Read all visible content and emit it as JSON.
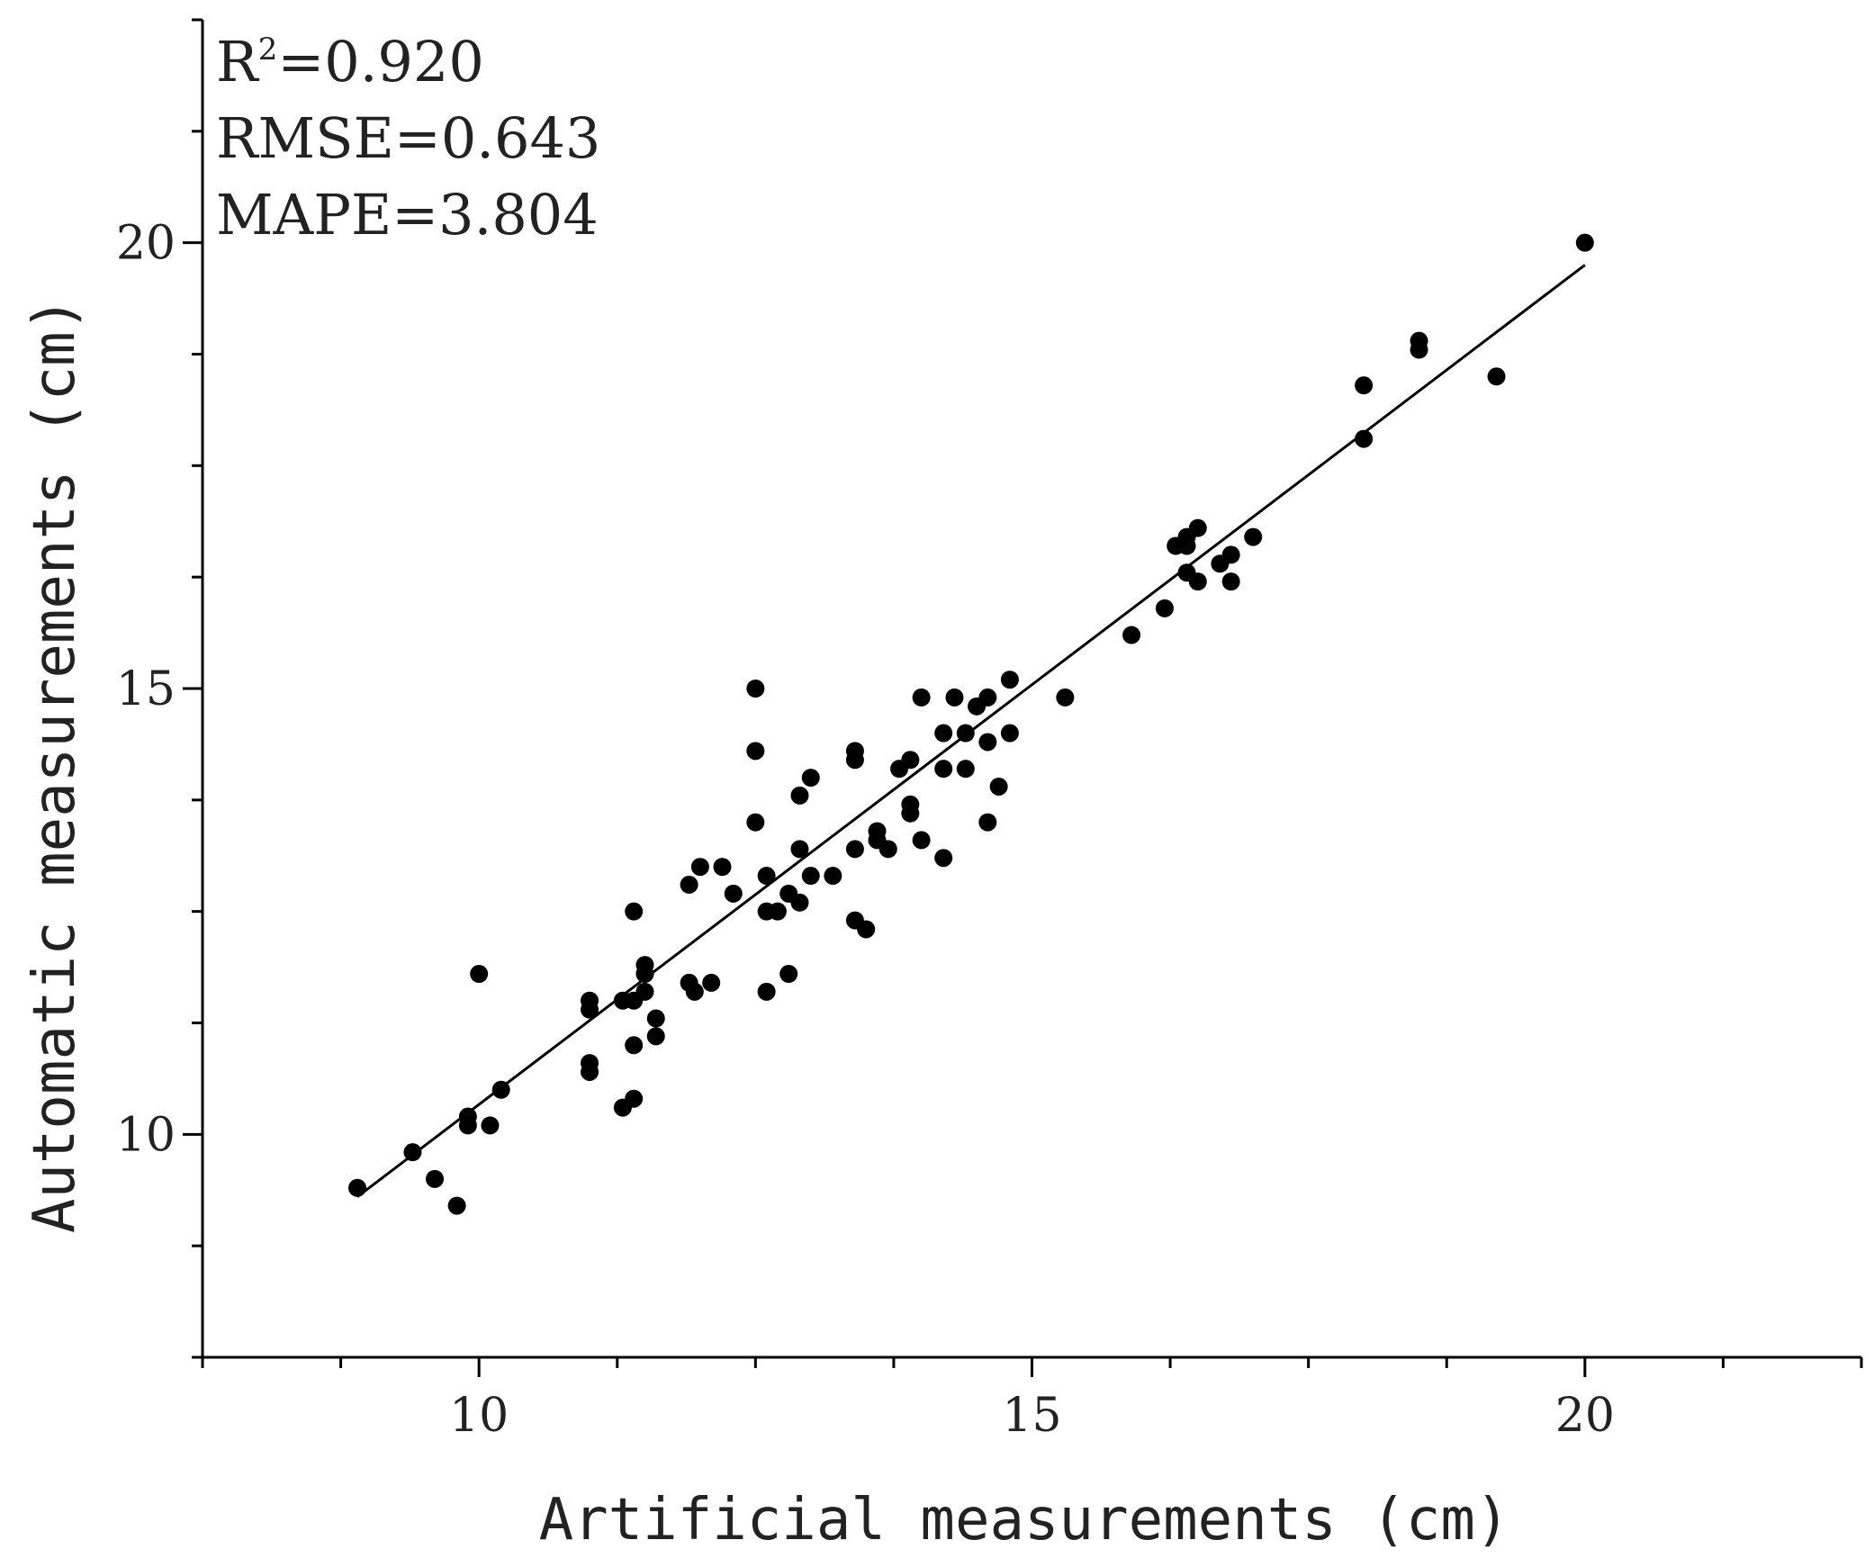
{
  "chart_data": {
    "type": "scatter",
    "title": "",
    "xlabel": "Artificial measurements (cm)",
    "ylabel": "Automatic measurements (cm)",
    "xlim": [
      7.5,
      22.5
    ],
    "ylim": [
      7.5,
      22.5
    ],
    "x_ticks": [
      10,
      15,
      20
    ],
    "y_ticks": [
      10,
      15,
      20
    ],
    "x_ticks_minor": [
      7.5,
      8.75,
      11.25,
      12.5,
      13.75,
      16.25,
      17.5,
      18.75,
      21.25,
      22.5
    ],
    "y_ticks_minor": [
      7.5,
      8.75,
      11.25,
      12.5,
      13.75,
      16.25,
      17.5,
      18.75,
      21.25,
      22.5
    ],
    "grid": false,
    "legend": "none",
    "annotations": [
      {
        "label": "R",
        "sup": "2",
        "value": "=0.920"
      },
      {
        "label": "RMSE",
        "value": "=0.643"
      },
      {
        "label": "MAPE",
        "value": "=3.804"
      }
    ],
    "fit_line": {
      "x": [
        8.9,
        20.0
      ],
      "y": [
        9.3,
        19.75
      ]
    },
    "series": [
      {
        "points": [
          [
            8.9,
            9.4
          ],
          [
            9.4,
            9.8
          ],
          [
            9.6,
            9.5
          ],
          [
            9.8,
            9.2
          ],
          [
            9.9,
            10.1
          ],
          [
            9.9,
            10.2
          ],
          [
            10.0,
            11.8
          ],
          [
            10.1,
            10.1
          ],
          [
            10.2,
            10.5
          ],
          [
            11.0,
            11.4
          ],
          [
            11.0,
            11.5
          ],
          [
            11.0,
            10.7
          ],
          [
            11.0,
            10.8
          ],
          [
            11.3,
            11.5
          ],
          [
            11.3,
            10.3
          ],
          [
            11.4,
            10.4
          ],
          [
            11.4,
            11.0
          ],
          [
            11.4,
            11.5
          ],
          [
            11.4,
            12.5
          ],
          [
            11.5,
            11.9
          ],
          [
            11.5,
            11.8
          ],
          [
            11.5,
            11.6
          ],
          [
            11.6,
            11.3
          ],
          [
            11.6,
            11.1
          ],
          [
            11.9,
            11.7
          ],
          [
            11.9,
            12.8
          ],
          [
            11.95,
            11.6
          ],
          [
            12.0,
            13.0
          ],
          [
            12.1,
            11.7
          ],
          [
            12.2,
            13.0
          ],
          [
            12.3,
            12.7
          ],
          [
            12.5,
            15.0
          ],
          [
            12.5,
            14.3
          ],
          [
            12.5,
            13.5
          ],
          [
            12.6,
            12.9
          ],
          [
            12.6,
            12.5
          ],
          [
            12.6,
            11.6
          ],
          [
            12.7,
            12.5
          ],
          [
            12.8,
            12.7
          ],
          [
            12.8,
            11.8
          ],
          [
            12.9,
            13.8
          ],
          [
            12.9,
            13.2
          ],
          [
            12.9,
            12.6
          ],
          [
            13.0,
            14.0
          ],
          [
            13.0,
            12.9
          ],
          [
            13.2,
            12.9
          ],
          [
            13.4,
            14.3
          ],
          [
            13.4,
            14.2
          ],
          [
            13.4,
            13.2
          ],
          [
            13.4,
            12.4
          ],
          [
            13.5,
            12.3
          ],
          [
            13.6,
            13.4
          ],
          [
            13.6,
            13.3
          ],
          [
            13.7,
            13.2
          ],
          [
            13.8,
            14.1
          ],
          [
            13.9,
            14.2
          ],
          [
            13.9,
            13.7
          ],
          [
            13.9,
            13.6
          ],
          [
            14.0,
            14.9
          ],
          [
            14.0,
            13.3
          ],
          [
            14.2,
            14.5
          ],
          [
            14.2,
            14.1
          ],
          [
            14.2,
            13.1
          ],
          [
            14.3,
            14.9
          ],
          [
            14.4,
            14.5
          ],
          [
            14.4,
            14.1
          ],
          [
            14.5,
            14.8
          ],
          [
            14.6,
            14.9
          ],
          [
            14.6,
            14.4
          ],
          [
            14.6,
            13.5
          ],
          [
            14.7,
            13.9
          ],
          [
            14.8,
            15.1
          ],
          [
            14.8,
            14.5
          ],
          [
            15.3,
            14.9
          ],
          [
            15.9,
            15.6
          ],
          [
            16.2,
            15.9
          ],
          [
            16.3,
            16.6
          ],
          [
            16.4,
            16.6
          ],
          [
            16.4,
            16.3
          ],
          [
            16.4,
            16.7
          ],
          [
            16.5,
            16.8
          ],
          [
            16.5,
            16.2
          ],
          [
            16.7,
            16.4
          ],
          [
            16.8,
            16.5
          ],
          [
            16.8,
            16.2
          ],
          [
            17.0,
            16.7
          ],
          [
            18.0,
            18.4
          ],
          [
            18.0,
            17.8
          ],
          [
            18.5,
            18.9
          ],
          [
            18.5,
            18.8
          ],
          [
            19.2,
            18.5
          ],
          [
            20.0,
            20.0
          ]
        ]
      }
    ]
  }
}
